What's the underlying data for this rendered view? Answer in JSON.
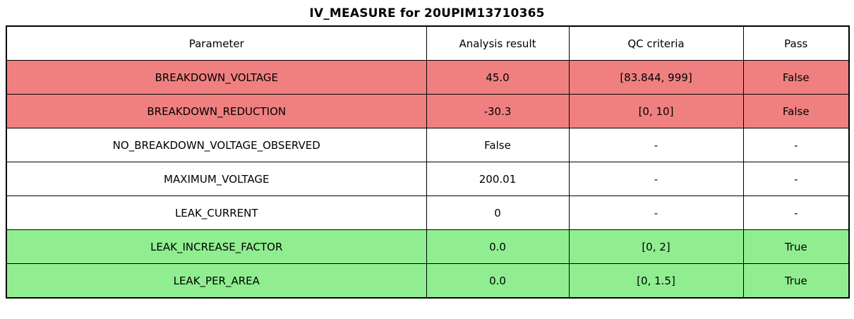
{
  "title": "IV_MEASURE for 20UPIM13710365",
  "table": {
    "columns": [
      "Parameter",
      "Analysis result",
      "QC criteria",
      "Pass"
    ],
    "rows": [
      {
        "cells": [
          "BREAKDOWN_VOLTAGE",
          "45.0",
          "[83.844, 999]",
          "False"
        ],
        "status": "fail"
      },
      {
        "cells": [
          "BREAKDOWN_REDUCTION",
          "-30.3",
          "[0, 10]",
          "False"
        ],
        "status": "fail"
      },
      {
        "cells": [
          "NO_BREAKDOWN_VOLTAGE_OBSERVED",
          "False",
          "-",
          "-"
        ],
        "status": "neutral"
      },
      {
        "cells": [
          "MAXIMUM_VOLTAGE",
          "200.01",
          "-",
          "-"
        ],
        "status": "neutral"
      },
      {
        "cells": [
          "LEAK_CURRENT",
          "0",
          "-",
          "-"
        ],
        "status": "neutral"
      },
      {
        "cells": [
          "LEAK_INCREASE_FACTOR",
          "0.0",
          "[0, 2]",
          "True"
        ],
        "status": "pass"
      },
      {
        "cells": [
          "LEAK_PER_AREA",
          "0.0",
          "[0, 1.5]",
          "True"
        ],
        "status": "pass"
      }
    ]
  },
  "colors": {
    "fail": "#f08080",
    "pass": "#90ee90",
    "neutral": "#ffffff",
    "border": "#000000",
    "text": "#000000"
  }
}
